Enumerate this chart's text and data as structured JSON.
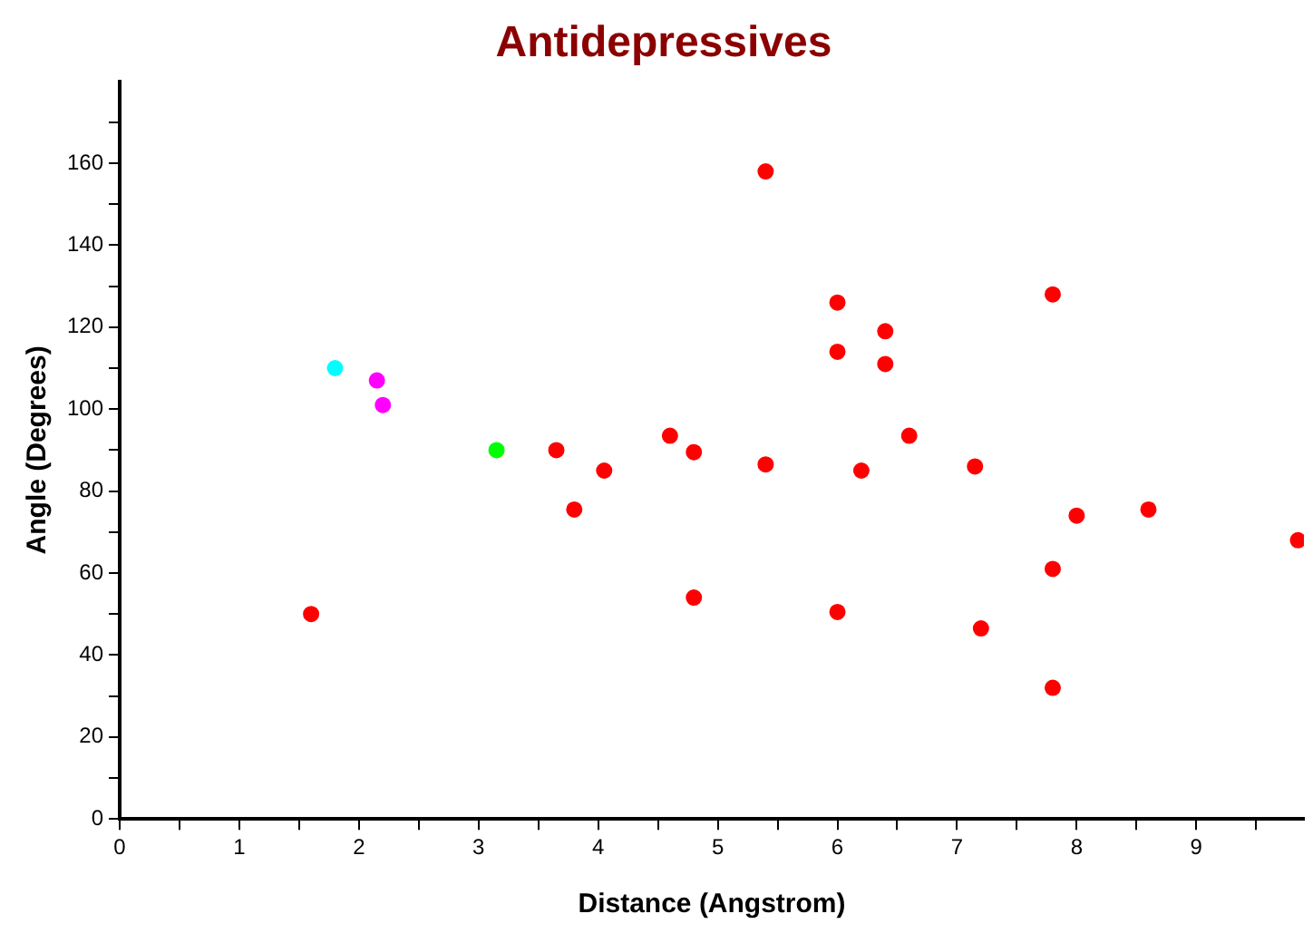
{
  "chart_data": {
    "type": "scatter",
    "title": "Antidepressives",
    "xlabel": "Distance (Angstrom)",
    "ylabel": "Angle (Degrees)",
    "xlim": [
      0,
      9.9
    ],
    "xticks": [
      0,
      1,
      2,
      3,
      4,
      5,
      6,
      7,
      8,
      9,
      {
        "value": 0.5,
        "label": null
      },
      {
        "value": 1.5,
        "label": null
      },
      {
        "value": 2.5,
        "label": null
      },
      {
        "value": 3.5,
        "label": null
      },
      {
        "value": 4.5,
        "label": null
      },
      {
        "value": 5.5,
        "label": null
      },
      {
        "value": 6.5,
        "label": null
      },
      {
        "value": 7.5,
        "label": null
      },
      {
        "value": 8.5,
        "label": null
      },
      {
        "value": 9.5,
        "label": null
      }
    ],
    "ylim": [
      0,
      180
    ],
    "yticks": [
      0,
      20,
      40,
      60,
      80,
      100,
      120,
      140,
      160,
      {
        "value": 10,
        "label": null
      },
      {
        "value": 30,
        "label": null
      },
      {
        "value": 50,
        "label": null
      },
      {
        "value": 70,
        "label": null
      },
      {
        "value": 90,
        "label": null
      },
      {
        "value": 110,
        "label": null
      },
      {
        "value": 130,
        "label": null
      },
      {
        "value": 150,
        "label": null
      },
      {
        "value": 170,
        "label": null
      }
    ],
    "grid": false,
    "legend": false,
    "marker": "circle",
    "series": [
      {
        "color": "#00ffff",
        "x": [
          1.8
        ],
        "values": [
          110
        ]
      },
      {
        "color": "#ff00ff",
        "x": [
          2.15,
          2.2
        ],
        "values": [
          107,
          101
        ]
      },
      {
        "color": "#00ff00",
        "x": [
          3.15
        ],
        "values": [
          90
        ]
      },
      {
        "color": "#ff0000",
        "x": [
          1.6,
          3.65,
          4.05,
          4.6,
          4.8,
          3.8,
          4.8,
          5.4,
          5.4,
          6.0,
          6.0,
          6.4,
          6.4,
          6.2,
          6.6,
          7.15,
          7.8,
          8.0,
          8.6,
          7.8,
          6.0,
          7.2,
          7.8,
          9.85
        ],
        "values": [
          50,
          90,
          85,
          93.5,
          89.5,
          75.5,
          54,
          158,
          86.5,
          126,
          114,
          119,
          111,
          85,
          93.5,
          86,
          128,
          74,
          75.5,
          61,
          50.5,
          46.5,
          32,
          68
        ]
      }
    ]
  }
}
